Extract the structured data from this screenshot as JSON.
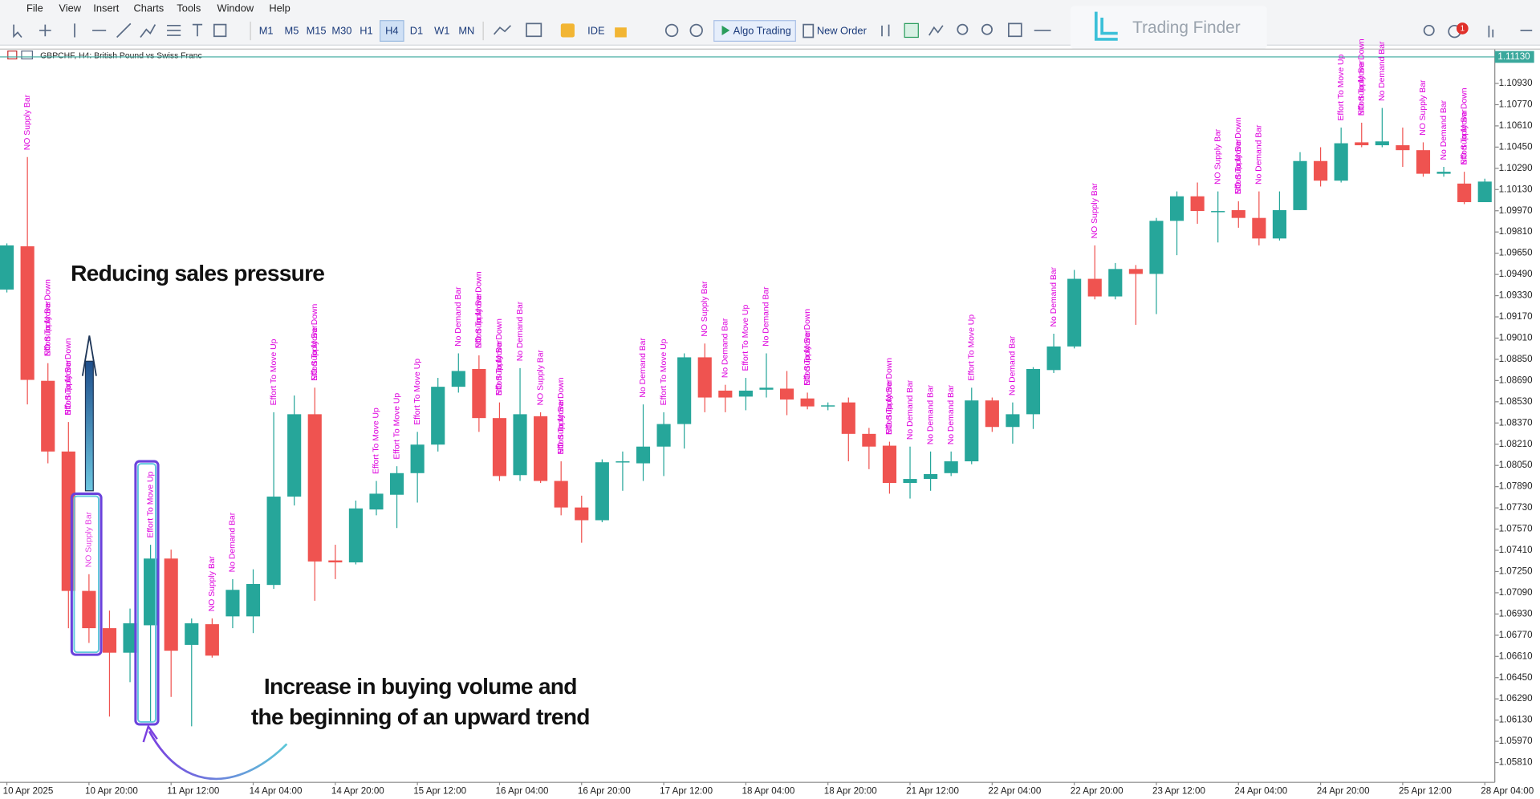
{
  "menu": [
    "File",
    "View",
    "Insert",
    "Charts",
    "Tools",
    "Window",
    "Help"
  ],
  "toolbar": {
    "timeframes": [
      "M1",
      "M5",
      "M15",
      "M30",
      "H1",
      "H4",
      "D1",
      "W1",
      "MN"
    ],
    "ide": "IDE",
    "algo_trading": "Algo Trading",
    "new_order": "New Order",
    "notifications": 1
  },
  "logo": "Trading Finder",
  "chart_data": {
    "type": "candlestick",
    "title": "GBPCHF, H4:  British Pound vs Swiss Franc",
    "up_color": "#26a69a",
    "down_color": "#ef5350",
    "grid": false,
    "categories": [
      "10 Apr 2025",
      null,
      null,
      null,
      "10 Apr 20:00",
      null,
      null,
      null,
      "11 Apr 12:00",
      null,
      null,
      null,
      "14 Apr 04:00",
      null,
      null,
      null,
      "14 Apr 20:00",
      null,
      null,
      null,
      "15 Apr 12:00",
      null,
      null,
      null,
      "16 Apr 04:00",
      null,
      null,
      null,
      "16 Apr 20:00",
      null,
      null,
      null,
      "17 Apr 12:00",
      null,
      null,
      null,
      "18 Apr 04:00",
      null,
      null,
      null,
      "18 Apr 20:00",
      null,
      null,
      null,
      "21 Apr 12:00",
      null,
      null,
      null,
      "22 Apr 04:00",
      null,
      null,
      null,
      "22 Apr 20:00",
      null,
      null,
      null,
      "23 Apr 12:00",
      null,
      null,
      null,
      "24 Apr 04:00",
      null,
      null,
      null,
      "24 Apr 20:00",
      null,
      null,
      null,
      "25 Apr 12:00",
      null,
      null,
      null,
      "28 Apr 04:00"
    ],
    "open": [
      1.09376,
      1.09702,
      1.08688,
      1.08155,
      1.07104,
      1.06823,
      1.06638,
      1.06845,
      1.07348,
      1.06697,
      1.06853,
      1.06912,
      1.06912,
      1.07149,
      1.07815,
      1.08436,
      1.07334,
      1.07319,
      1.07718,
      1.07829,
      1.07992,
      1.08207,
      1.08643,
      1.08777,
      1.08407,
      1.07977,
      1.08421,
      1.07933,
      1.07733,
      1.07637,
      1.08074,
      1.08066,
      1.08192,
      1.08362,
      1.08865,
      1.08614,
      1.08569,
      1.08621,
      1.08629,
      1.08555,
      1.08495,
      1.08525,
      1.08288,
      1.08199,
      1.07918,
      1.07948,
      1.07992,
      1.08081,
      1.0854,
      1.0834,
      1.08436,
      1.08769,
      1.08947,
      1.09457,
      1.09324,
      1.09531,
      1.09494,
      1.09894,
      1.10079,
      1.09961,
      1.09975,
      1.09916,
      1.09761,
      1.09975,
      1.10345,
      1.10197,
      1.10486,
      1.10464,
      1.10464,
      1.10427,
      1.10249,
      1.10175,
      1.10035
    ],
    "high": [
      1.09724,
      1.10375,
      1.08821,
      1.08377,
      1.0723,
      1.06956,
      1.06971,
      1.07452,
      1.07415,
      1.06897,
      1.06897,
      1.07193,
      1.07267,
      1.08451,
      1.08577,
      1.08636,
      1.07452,
      1.07785,
      1.07933,
      1.08044,
      1.08303,
      1.0871,
      1.08895,
      1.0888,
      1.08525,
      1.08784,
      1.08451,
      1.08081,
      1.07822,
      1.08096,
      1.08155,
      1.0851,
      1.08451,
      1.08895,
      1.08969,
      1.08658,
      1.0871,
      1.08895,
      1.08762,
      1.08599,
      1.08525,
      1.08562,
      1.08333,
      1.08229,
      1.08192,
      1.08155,
      1.08155,
      1.08636,
      1.08562,
      1.08525,
      1.08791,
      1.09043,
      1.09524,
      1.09709,
      1.09576,
      1.09561,
      1.09916,
      1.10116,
      1.10183,
      1.10116,
      1.10042,
      1.10116,
      1.10116,
      1.10412,
      1.10449,
      1.10597,
      1.10634,
      1.10745,
      1.10597,
      1.10486,
      1.10301,
      1.10264,
      1.10212
    ],
    "low": [
      1.09354,
      1.0851,
      1.08066,
      1.06823,
      1.06712,
      1.06157,
      1.06416,
      1.0612,
      1.06305,
      1.06083,
      1.06601,
      1.06823,
      1.06786,
      1.07119,
      1.07748,
      1.0703,
      1.07193,
      1.07304,
      1.07674,
      1.07578,
      1.0777,
      1.08155,
      1.08599,
      1.08303,
      1.07933,
      1.07933,
      1.07918,
      1.07674,
      1.07467,
      1.07622,
      1.07859,
      1.07933,
      1.0797,
      1.08177,
      1.08451,
      1.08451,
      1.08466,
      1.08562,
      1.08429,
      1.08473,
      1.08466,
      1.08081,
      1.08022,
      1.07837,
      1.078,
      1.07859,
      1.0797,
      1.08059,
      1.08303,
      1.08214,
      1.08325,
      1.08747,
      1.08932,
      1.09302,
      1.09302,
      1.0911,
      1.09191,
      1.09635,
      1.09872,
      1.09731,
      1.09842,
      1.09709,
      1.09746,
      1.09975,
      1.10153,
      1.10183,
      1.10449,
      1.10449,
      1.10301,
      1.10227,
      1.10227,
      1.1002,
      1.10035
    ],
    "close": [
      1.09709,
      1.08695,
      1.08155,
      1.07104,
      1.06823,
      1.06638,
      1.0686,
      1.07348,
      1.06653,
      1.0686,
      1.06616,
      1.07112,
      1.07156,
      1.07815,
      1.08436,
      1.07326,
      1.07319,
      1.07726,
      1.07837,
      1.07992,
      1.08207,
      1.08643,
      1.08762,
      1.08407,
      1.0797,
      1.08436,
      1.07933,
      1.07733,
      1.07637,
      1.08074,
      1.08081,
      1.08192,
      1.08362,
      1.08865,
      1.08562,
      1.08562,
      1.08614,
      1.08636,
      1.08547,
      1.08495,
      1.08503,
      1.08288,
      1.08192,
      1.07918,
      1.07948,
      1.07985,
      1.08081,
      1.0854,
      1.0834,
      1.08436,
      1.08777,
      1.08947,
      1.09457,
      1.09324,
      1.09531,
      1.09494,
      1.09894,
      1.10079,
      1.09968,
      1.09968,
      1.09916,
      1.09761,
      1.09975,
      1.10345,
      1.10197,
      1.10479,
      1.10464,
      1.10493,
      1.10427,
      1.10249,
      1.10264,
      1.10035,
      1.1019
    ],
    "ylim": [
      1.05661,
      1.11189
    ],
    "yticks": [
      {
        "value": 1.1093,
        "label": "1.10930"
      },
      {
        "value": 1.1077,
        "label": "1.10770"
      },
      {
        "value": 1.1061,
        "label": "1.10610"
      },
      {
        "value": 1.1045,
        "label": "1.10450"
      },
      {
        "value": 1.1029,
        "label": "1.10290"
      },
      {
        "value": 1.1013,
        "label": "1.10130"
      },
      {
        "value": 1.0997,
        "label": "1.09970"
      },
      {
        "value": 1.0981,
        "label": "1.09810"
      },
      {
        "value": 1.0965,
        "label": "1.09650"
      },
      {
        "value": 1.0949,
        "label": "1.09490"
      },
      {
        "value": 1.0933,
        "label": "1.09330"
      },
      {
        "value": 1.0917,
        "label": "1.09170"
      },
      {
        "value": 1.0901,
        "label": "1.09010"
      },
      {
        "value": 1.0885,
        "label": "1.08850"
      },
      {
        "value": 1.0869,
        "label": "1.08690"
      },
      {
        "value": 1.0853,
        "label": "1.08530"
      },
      {
        "value": 1.0837,
        "label": "1.08370"
      },
      {
        "value": 1.0821,
        "label": "1.08210"
      },
      {
        "value": 1.0805,
        "label": "1.08050"
      },
      {
        "value": 1.0789,
        "label": "1.07890"
      },
      {
        "value": 1.0773,
        "label": "1.07730"
      },
      {
        "value": 1.0757,
        "label": "1.07570"
      },
      {
        "value": 1.0741,
        "label": "1.07410"
      },
      {
        "value": 1.0725,
        "label": "1.07250"
      },
      {
        "value": 1.0709,
        "label": "1.07090"
      },
      {
        "value": 1.0693,
        "label": "1.06930"
      },
      {
        "value": 1.0677,
        "label": "1.06770"
      },
      {
        "value": 1.0661,
        "label": "1.06610"
      },
      {
        "value": 1.0645,
        "label": "1.06450"
      },
      {
        "value": 1.0629,
        "label": "1.06290"
      },
      {
        "value": 1.0613,
        "label": "1.06130"
      },
      {
        "value": 1.0597,
        "label": "1.05970"
      },
      {
        "value": 1.0581,
        "label": "1.05810"
      }
    ],
    "price_line": {
      "value": 1.1113,
      "label": "1.11130",
      "color": "#3aa89c"
    },
    "signal_color": "#dd00dd",
    "signals": [
      {
        "candle": 1,
        "text": "NO Supply Bar"
      },
      {
        "candle": 2,
        "text": "NO Supply Bar"
      },
      {
        "candle": 2,
        "text": "Effort To Move Down"
      },
      {
        "candle": 3,
        "text": "NO Supply Bar"
      },
      {
        "candle": 3,
        "text": "Effort To Move Down"
      },
      {
        "candle": 4,
        "text": "NO Supply Bar"
      },
      {
        "candle": 7,
        "text": "Effort To Move Up"
      },
      {
        "candle": 10,
        "text": "NO Supply Bar"
      },
      {
        "candle": 11,
        "text": "No Demand Bar"
      },
      {
        "candle": 13,
        "text": "Effort To Move Up"
      },
      {
        "candle": 15,
        "text": "NO Supply Bar"
      },
      {
        "candle": 15,
        "text": "Effort To Move Down"
      },
      {
        "candle": 18,
        "text": "Effort To Move Up"
      },
      {
        "candle": 19,
        "text": "Effort To Move Up"
      },
      {
        "candle": 20,
        "text": "Effort To Move Up"
      },
      {
        "candle": 22,
        "text": "No Demand Bar"
      },
      {
        "candle": 23,
        "text": "NO Supply Bar"
      },
      {
        "candle": 23,
        "text": "Effort To Move Down"
      },
      {
        "candle": 24,
        "text": "NO Supply Bar"
      },
      {
        "candle": 24,
        "text": "Effort To Move Down"
      },
      {
        "candle": 25,
        "text": "No Demand Bar"
      },
      {
        "candle": 26,
        "text": "NO Supply Bar"
      },
      {
        "candle": 27,
        "text": "NO Supply Bar"
      },
      {
        "candle": 27,
        "text": "Effort To Move Down"
      },
      {
        "candle": 31,
        "text": "No Demand Bar"
      },
      {
        "candle": 32,
        "text": "Effort To Move Up"
      },
      {
        "candle": 34,
        "text": "NO Supply Bar"
      },
      {
        "candle": 35,
        "text": "No Demand Bar"
      },
      {
        "candle": 36,
        "text": "Effort To Move Up"
      },
      {
        "candle": 37,
        "text": "No Demand Bar"
      },
      {
        "candle": 39,
        "text": "NO Supply Bar"
      },
      {
        "candle": 39,
        "text": "Effort To Move Down"
      },
      {
        "candle": 43,
        "text": "NO Supply Bar"
      },
      {
        "candle": 43,
        "text": "Effort To Move Down"
      },
      {
        "candle": 44,
        "text": "No Demand Bar"
      },
      {
        "candle": 45,
        "text": "No Demand Bar"
      },
      {
        "candle": 46,
        "text": "No Demand Bar"
      },
      {
        "candle": 47,
        "text": "Effort To Move Up"
      },
      {
        "candle": 49,
        "text": "No Demand Bar"
      },
      {
        "candle": 51,
        "text": "No Demand Bar"
      },
      {
        "candle": 53,
        "text": "NO Supply Bar"
      },
      {
        "candle": 59,
        "text": "NO Supply Bar"
      },
      {
        "candle": 60,
        "text": "NO Supply Bar"
      },
      {
        "candle": 60,
        "text": "Effort To Move Down"
      },
      {
        "candle": 61,
        "text": "No Demand Bar"
      },
      {
        "candle": 65,
        "text": "Effort To Move Up"
      },
      {
        "candle": 66,
        "text": "NO Supply Bar"
      },
      {
        "candle": 66,
        "text": "Effort To Move Down"
      },
      {
        "candle": 67,
        "text": "No Demand Bar"
      },
      {
        "candle": 69,
        "text": "NO Supply Bar"
      },
      {
        "candle": 70,
        "text": "No Demand Bar"
      },
      {
        "candle": 71,
        "text": "NO Supply Bar"
      },
      {
        "candle": 71,
        "text": "Effort To Move Down"
      }
    ],
    "annotations": [
      "Reducing sales pressure",
      "Increase in buying volume and",
      "the beginning of an upward trend"
    ]
  }
}
